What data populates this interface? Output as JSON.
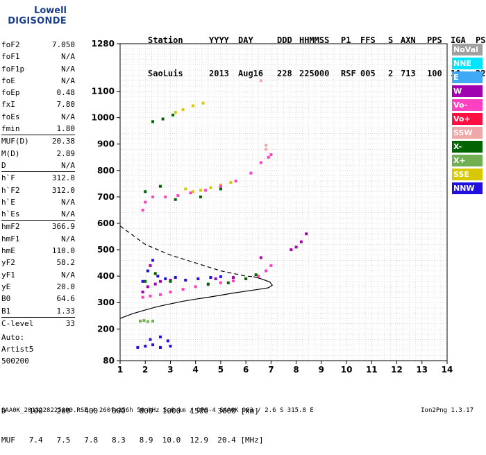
{
  "logo": {
    "line1": "Lowell",
    "line2": "DIGISONDE"
  },
  "header": {
    "labels": [
      "Station",
      "YYYY",
      "DAY",
      "DDD",
      "HHMMSS",
      "P1",
      "FFS",
      "S",
      "AXN",
      "PPS",
      "IGA",
      "PS"
    ],
    "values": [
      "SaoLuis",
      "2013",
      "Aug16",
      "228",
      "225000",
      "RSF",
      "005",
      "2",
      "713",
      "100",
      "10+",
      "22"
    ]
  },
  "params": [
    [
      {
        "k": "foF2",
        "v": "7.050"
      },
      {
        "k": "foF1",
        "v": "N/A"
      },
      {
        "k": "foF1p",
        "v": "N/A"
      },
      {
        "k": "foE",
        "v": "N/A"
      },
      {
        "k": "foEp",
        "v": "0.48"
      },
      {
        "k": "fxI",
        "v": "7.80"
      },
      {
        "k": "foEs",
        "v": "N/A"
      },
      {
        "k": "fmin",
        "v": "1.80"
      }
    ],
    [
      {
        "k": "MUF(D)",
        "v": "20.38"
      },
      {
        "k": "M(D)",
        "v": "2.89"
      },
      {
        "k": "D",
        "v": "N/A"
      }
    ],
    [
      {
        "k": "h`F",
        "v": "312.0"
      },
      {
        "k": "h`F2",
        "v": "312.0"
      },
      {
        "k": "h`E",
        "v": "N/A"
      },
      {
        "k": "h`Es",
        "v": "N/A"
      }
    ],
    [
      {
        "k": "hmF2",
        "v": "366.9"
      },
      {
        "k": "hmF1",
        "v": "N/A"
      },
      {
        "k": "hmE",
        "v": "110.0"
      },
      {
        "k": "yF2",
        "v": "58.2"
      },
      {
        "k": "yF1",
        "v": "N/A"
      },
      {
        "k": "yE",
        "v": "20.0"
      },
      {
        "k": "B0",
        "v": "64.6"
      },
      {
        "k": "B1",
        "v": "1.33"
      }
    ],
    [
      {
        "k": "C-level",
        "v": "33"
      }
    ]
  ],
  "auto": [
    "Auto:",
    "Artist5",
    "500200"
  ],
  "bottom": {
    "d_row": "D     100   200   400   600   800  1000  1500  3000 [km]",
    "muf_row": "MUF   7.4   7.5   7.8   8.3   8.9  10.0  12.9  20.4 [MHz]"
  },
  "footer": "SAA0K_2013228225000.RSF / 260fx256h 50 kHz 5.0 km / DPS-4 SAA0K 903 / 2.6 S 315.8 E",
  "version": "Ion2Png 1.3.17",
  "legend": [
    {
      "label": "NoVal",
      "color": "#a0a0a0"
    },
    {
      "label": "NNE",
      "color": "#00e5ff"
    },
    {
      "label": "E",
      "color": "#3fa9f5"
    },
    {
      "label": "W",
      "color": "#a000b0"
    },
    {
      "label": "Vo-",
      "color": "#ff40c0"
    },
    {
      "label": "Vo+",
      "color": "#ff1040"
    },
    {
      "label": "SSW",
      "color": "#f0a8a8"
    },
    {
      "label": "X-",
      "color": "#006400"
    },
    {
      "label": "X+",
      "color": "#70b050"
    },
    {
      "label": "SSE",
      "color": "#d8c800"
    },
    {
      "label": "NNW",
      "color": "#2010e0"
    }
  ],
  "chart_data": {
    "type": "scatter",
    "xlim": [
      1,
      14
    ],
    "ylim": [
      80,
      1280
    ],
    "xticks": [
      1,
      2,
      3,
      4,
      5,
      6,
      7,
      8,
      9,
      10,
      11,
      12,
      13,
      14
    ],
    "yticks": [
      80,
      200,
      300,
      400,
      500,
      600,
      700,
      800,
      900,
      1000,
      1100,
      1280
    ],
    "grid": true,
    "traces": [
      {
        "name": "",
        "color": "#ff40c0",
        "style": "scatter",
        "points": [
          [
            1.9,
            320
          ],
          [
            2.2,
            325
          ],
          [
            2.6,
            330
          ],
          [
            3.0,
            340
          ],
          [
            3.5,
            350
          ],
          [
            4.0,
            360
          ],
          [
            4.5,
            368
          ],
          [
            5.0,
            375
          ],
          [
            5.5,
            382
          ],
          [
            6.0,
            390
          ],
          [
            6.5,
            400
          ],
          [
            6.8,
            420
          ],
          [
            7.0,
            440
          ]
        ]
      },
      {
        "name": "",
        "color": "#2010e0",
        "style": "scatter",
        "points": [
          [
            1.9,
            380
          ],
          [
            2.1,
            420
          ],
          [
            2.3,
            460
          ],
          [
            2.5,
            400
          ],
          [
            2.8,
            390
          ],
          [
            3.2,
            395
          ],
          [
            3.6,
            385
          ],
          [
            4.1,
            390
          ],
          [
            4.6,
            395
          ],
          [
            5.0,
            398
          ]
        ]
      },
      {
        "name": "",
        "color": "#a000b0",
        "style": "scatter",
        "points": [
          [
            1.9,
            340
          ],
          [
            2.1,
            360
          ],
          [
            2.2,
            440
          ],
          [
            2.4,
            370
          ],
          [
            2.6,
            380
          ],
          [
            3.0,
            385
          ],
          [
            4.8,
            390
          ],
          [
            5.5,
            395
          ],
          [
            6.6,
            470
          ],
          [
            7.8,
            500
          ],
          [
            8.0,
            510
          ],
          [
            8.2,
            530
          ],
          [
            8.4,
            560
          ]
        ]
      },
      {
        "name": "",
        "color": "#006400",
        "style": "scatter",
        "points": [
          [
            2.0,
            380
          ],
          [
            2.4,
            410
          ],
          [
            3.0,
            380
          ],
          [
            4.5,
            370
          ],
          [
            5.3,
            375
          ],
          [
            6.0,
            390
          ],
          [
            6.4,
            405
          ],
          [
            2.0,
            720
          ],
          [
            2.6,
            740
          ],
          [
            3.2,
            690
          ],
          [
            4.2,
            700
          ],
          [
            5.0,
            730
          ],
          [
            2.3,
            985
          ],
          [
            2.7,
            995
          ],
          [
            3.1,
            1010
          ]
        ]
      },
      {
        "name": "",
        "color": "#d8c800",
        "style": "scatter",
        "points": [
          [
            3.6,
            730
          ],
          [
            3.9,
            720
          ],
          [
            4.2,
            725
          ],
          [
            4.6,
            735
          ],
          [
            5.0,
            745
          ],
          [
            5.4,
            755
          ],
          [
            3.2,
            1020
          ],
          [
            3.5,
            1030
          ],
          [
            3.9,
            1045
          ],
          [
            4.3,
            1055
          ]
        ]
      },
      {
        "name": "",
        "color": "#ff40c0",
        "style": "scatter",
        "points": [
          [
            1.9,
            650
          ],
          [
            2.0,
            680
          ],
          [
            2.3,
            700
          ],
          [
            2.8,
            700
          ],
          [
            3.3,
            705
          ],
          [
            3.8,
            715
          ],
          [
            4.4,
            725
          ],
          [
            5.0,
            740
          ],
          [
            5.6,
            760
          ],
          [
            6.2,
            790
          ],
          [
            6.6,
            830
          ],
          [
            6.9,
            850
          ],
          [
            7.0,
            860
          ]
        ]
      },
      {
        "name": "",
        "color": "#2010e0",
        "style": "scatter",
        "points": [
          [
            1.7,
            130
          ],
          [
            2.0,
            135
          ],
          [
            2.3,
            140
          ],
          [
            2.6,
            130
          ],
          [
            3.0,
            135
          ],
          [
            2.2,
            160
          ],
          [
            2.6,
            170
          ],
          [
            2.9,
            155
          ]
        ]
      },
      {
        "name": "",
        "color": "#70b050",
        "style": "scatter",
        "points": [
          [
            1.8,
            230
          ],
          [
            1.95,
            232
          ],
          [
            2.1,
            228
          ],
          [
            2.3,
            230
          ]
        ]
      },
      {
        "name": "",
        "color": "#f0a8a8",
        "style": "scatter",
        "points": [
          [
            6.6,
            1140
          ],
          [
            6.8,
            895
          ],
          [
            6.8,
            880
          ]
        ]
      },
      {
        "name": "",
        "color": "#000000",
        "style": "line",
        "points": [
          [
            1.0,
            240
          ],
          [
            1.5,
            258
          ],
          [
            2.0,
            272
          ],
          [
            2.5,
            285
          ],
          [
            3.0,
            295
          ],
          [
            3.5,
            305
          ],
          [
            4.0,
            313
          ],
          [
            4.5,
            320
          ],
          [
            5.0,
            328
          ],
          [
            5.5,
            336
          ],
          [
            6.0,
            343
          ],
          [
            6.5,
            350
          ],
          [
            6.9,
            356
          ],
          [
            7.05,
            366
          ],
          [
            6.95,
            378
          ],
          [
            6.6,
            390
          ],
          [
            6.3,
            398
          ]
        ]
      },
      {
        "name": "",
        "color": "#000000",
        "style": "dashed",
        "points": [
          [
            1.0,
            590
          ],
          [
            1.5,
            555
          ],
          [
            2.0,
            520
          ],
          [
            2.5,
            500
          ],
          [
            3.0,
            480
          ],
          [
            3.5,
            465
          ],
          [
            4.0,
            450
          ],
          [
            4.5,
            435
          ],
          [
            5.0,
            420
          ],
          [
            5.5,
            410
          ],
          [
            6.0,
            400
          ],
          [
            6.3,
            398
          ]
        ]
      }
    ]
  }
}
